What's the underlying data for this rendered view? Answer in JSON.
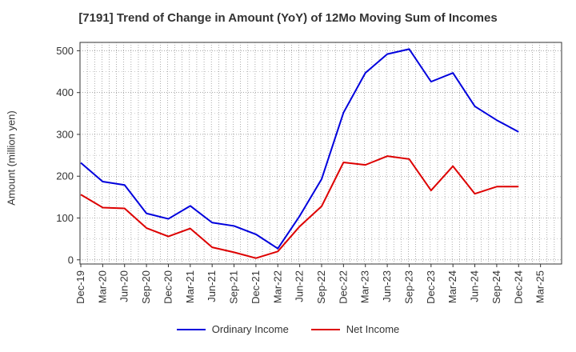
{
  "chart_data": {
    "type": "line",
    "title": "[7191]  Trend of Change in Amount (YoY) of 12Mo Moving Sum of Incomes",
    "ylabel": "Amount (million yen)",
    "xlabel": "",
    "x": [
      "Dec-19",
      "Mar-20",
      "Jun-20",
      "Sep-20",
      "Dec-20",
      "Mar-21",
      "Jun-21",
      "Sep-21",
      "Dec-21",
      "Mar-22",
      "Jun-22",
      "Sep-22",
      "Dec-22",
      "Mar-23",
      "Jun-23",
      "Sep-23",
      "Dec-23",
      "Mar-24",
      "Jun-24",
      "Sep-24",
      "Dec-24",
      "Mar-25"
    ],
    "ylim": [
      -10,
      520
    ],
    "yticks": [
      0,
      100,
      200,
      300,
      400,
      500
    ],
    "grid": true,
    "legend_position": "bottom",
    "series": [
      {
        "name": "Ordinary Income",
        "color": "#0000dd",
        "values": [
          232,
          187,
          179,
          111,
          98,
          129,
          89,
          81,
          61,
          27,
          105,
          193,
          352,
          447,
          492,
          504,
          426,
          447,
          367,
          334,
          306,
          null
        ]
      },
      {
        "name": "Net Income",
        "color": "#dd0000",
        "values": [
          156,
          125,
          123,
          76,
          56,
          75,
          30,
          18,
          4,
          20,
          80,
          128,
          233,
          227,
          248,
          241,
          166,
          224,
          158,
          175,
          175,
          null
        ]
      }
    ]
  }
}
